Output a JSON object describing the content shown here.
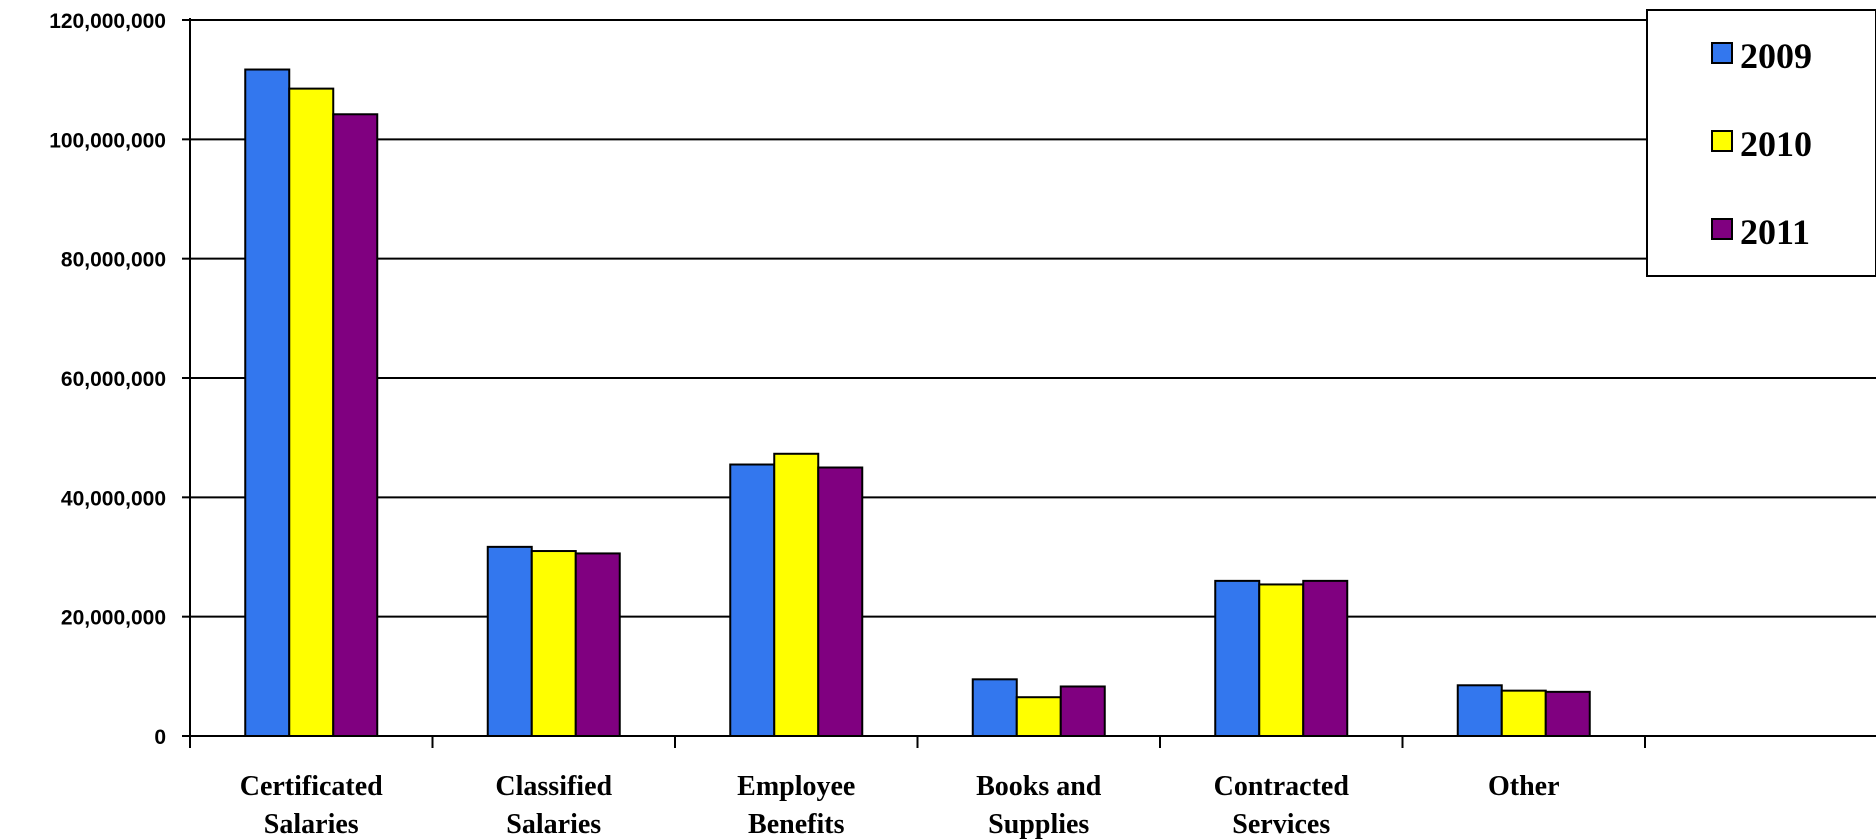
{
  "chart_data": {
    "type": "bar",
    "categories": [
      [
        "Certificated",
        "Salaries"
      ],
      [
        "Classified",
        "Salaries"
      ],
      [
        "Employee",
        "Benefits"
      ],
      [
        "Books and",
        "Supplies"
      ],
      [
        "Contracted",
        "Services"
      ],
      [
        "Other"
      ]
    ],
    "series": [
      {
        "name": "2009",
        "color": "#3377ee",
        "values": [
          111700000,
          31700000,
          45500000,
          9500000,
          26000000,
          8500000
        ]
      },
      {
        "name": "2010",
        "color": "#ffff00",
        "values": [
          108500000,
          31000000,
          47300000,
          6500000,
          25400000,
          7600000
        ]
      },
      {
        "name": "2011",
        "color": "#800080",
        "values": [
          104200000,
          30600000,
          45000000,
          8300000,
          26000000,
          7400000
        ]
      }
    ],
    "ylim": [
      0,
      120000000
    ],
    "yticks": [
      "0",
      "20,000,000",
      "40,000,000",
      "60,000,000",
      "80,000,000",
      "100,000,000",
      "120,000,000"
    ],
    "grid": true,
    "legend_position": "top-right"
  }
}
